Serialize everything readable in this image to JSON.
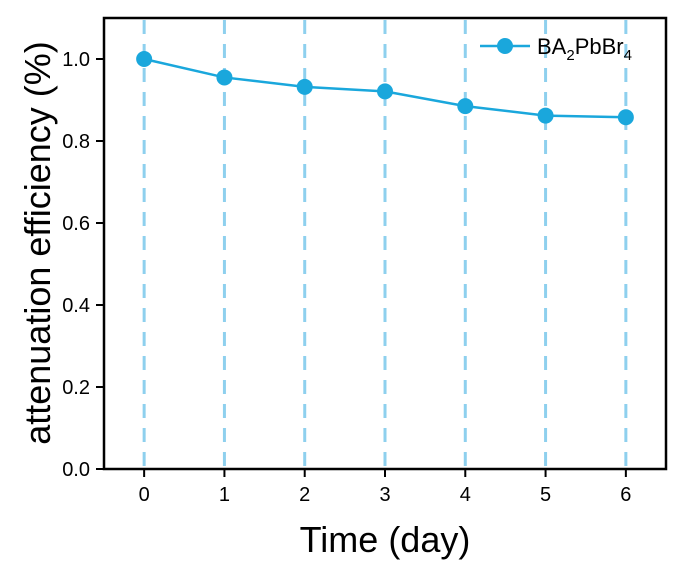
{
  "chart_data": {
    "type": "line",
    "title": "",
    "xlabel": "Time (day)",
    "ylabel": "attenuation efficiency (%)",
    "x": [
      0,
      1,
      2,
      3,
      4,
      5,
      6
    ],
    "xlim": [
      -0.5,
      6.5
    ],
    "ylim": [
      0.0,
      1.1
    ],
    "x_ticks": [
      "0",
      "1",
      "2",
      "3",
      "4",
      "5",
      "6"
    ],
    "y_ticks": [
      "0.0",
      "0.2",
      "0.4",
      "0.6",
      "0.8",
      "1.0"
    ],
    "grid": "vertical dashed lines at each x tick",
    "legend_position": "top-right",
    "series": [
      {
        "name": "BA2PbBr4",
        "legend_parts": {
          "base": "BA",
          "sub1": "2",
          "mid": "PbBr",
          "sub2": "4"
        },
        "values": [
          1.0,
          0.955,
          0.932,
          0.921,
          0.885,
          0.862,
          0.858
        ],
        "color": "#1aa7dc"
      }
    ],
    "grid_color": "#8ed0ee"
  }
}
